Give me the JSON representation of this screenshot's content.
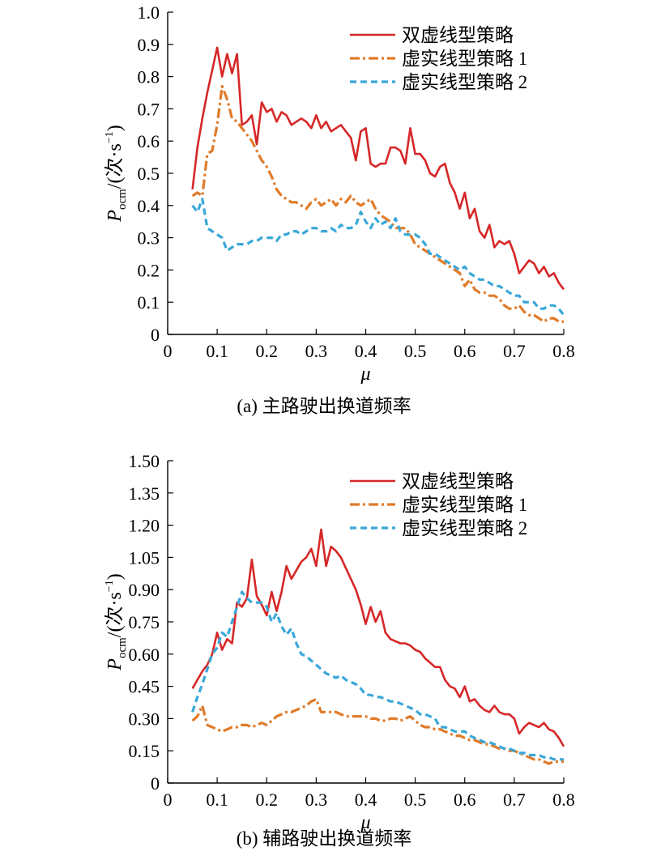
{
  "chart_data": [
    {
      "type": "line",
      "caption": "(a) 主路驶出换道频率",
      "xlabel": "μ",
      "ylabel": "P_ocm/(次·s⁻¹)",
      "ylabel_main": "P",
      "ylabel_sub": "ocm",
      "ylabel_unit": "/(次·s",
      "ylabel_sup": "−1",
      "ylabel_close": ")",
      "xlim": [
        0,
        0.8
      ],
      "ylim": [
        0,
        1.0
      ],
      "xticks": [
        "0",
        "0.1",
        "0.2",
        "0.3",
        "0.4",
        "0.5",
        "0.6",
        "0.7",
        "0.8"
      ],
      "yticks": [
        "0",
        "0.1",
        "0.2",
        "0.3",
        "0.4",
        "0.5",
        "0.6",
        "0.7",
        "0.8",
        "0.9",
        "1.0"
      ],
      "ytick_values": [
        0,
        0.1,
        0.2,
        0.3,
        0.4,
        0.5,
        0.6,
        0.7,
        0.8,
        0.9,
        1.0
      ],
      "legend_position": "top-right",
      "grid": false,
      "series": [
        {
          "name": "双虚线型策略",
          "color": "#d62728",
          "dash": "solid",
          "x": [
            0.05,
            0.06,
            0.07,
            0.08,
            0.09,
            0.1,
            0.11,
            0.12,
            0.13,
            0.14,
            0.15,
            0.16,
            0.17,
            0.18,
            0.19,
            0.2,
            0.21,
            0.22,
            0.23,
            0.24,
            0.25,
            0.26,
            0.27,
            0.28,
            0.29,
            0.3,
            0.31,
            0.32,
            0.33,
            0.34,
            0.35,
            0.36,
            0.37,
            0.38,
            0.39,
            0.4,
            0.41,
            0.42,
            0.43,
            0.44,
            0.45,
            0.46,
            0.47,
            0.48,
            0.49,
            0.5,
            0.51,
            0.52,
            0.53,
            0.54,
            0.55,
            0.56,
            0.57,
            0.58,
            0.59,
            0.6,
            0.61,
            0.62,
            0.63,
            0.64,
            0.65,
            0.66,
            0.67,
            0.68,
            0.69,
            0.7,
            0.71,
            0.72,
            0.73,
            0.74,
            0.75,
            0.76,
            0.77,
            0.78,
            0.79,
            0.8
          ],
          "y": [
            0.45,
            0.58,
            0.67,
            0.75,
            0.82,
            0.89,
            0.8,
            0.87,
            0.81,
            0.87,
            0.65,
            0.66,
            0.68,
            0.59,
            0.72,
            0.69,
            0.7,
            0.66,
            0.69,
            0.68,
            0.65,
            0.66,
            0.67,
            0.66,
            0.64,
            0.68,
            0.64,
            0.66,
            0.63,
            0.64,
            0.65,
            0.63,
            0.61,
            0.54,
            0.63,
            0.64,
            0.53,
            0.52,
            0.53,
            0.53,
            0.58,
            0.58,
            0.57,
            0.53,
            0.64,
            0.56,
            0.56,
            0.54,
            0.5,
            0.49,
            0.52,
            0.53,
            0.47,
            0.44,
            0.39,
            0.44,
            0.36,
            0.39,
            0.32,
            0.3,
            0.34,
            0.27,
            0.29,
            0.28,
            0.29,
            0.25,
            0.19,
            0.21,
            0.23,
            0.22,
            0.19,
            0.21,
            0.18,
            0.19,
            0.16,
            0.14
          ]
        },
        {
          "name": "虚实线型策略 1",
          "color": "#e07b2a",
          "dash": "12,4,3,4",
          "x": [
            0.05,
            0.06,
            0.07,
            0.08,
            0.09,
            0.1,
            0.11,
            0.12,
            0.13,
            0.14,
            0.15,
            0.16,
            0.17,
            0.18,
            0.19,
            0.2,
            0.21,
            0.22,
            0.23,
            0.24,
            0.25,
            0.26,
            0.27,
            0.28,
            0.29,
            0.3,
            0.31,
            0.32,
            0.33,
            0.34,
            0.35,
            0.36,
            0.37,
            0.38,
            0.39,
            0.4,
            0.41,
            0.42,
            0.43,
            0.44,
            0.45,
            0.46,
            0.47,
            0.48,
            0.49,
            0.5,
            0.51,
            0.52,
            0.53,
            0.54,
            0.55,
            0.56,
            0.57,
            0.58,
            0.59,
            0.6,
            0.61,
            0.62,
            0.63,
            0.64,
            0.65,
            0.66,
            0.67,
            0.68,
            0.69,
            0.7,
            0.71,
            0.72,
            0.73,
            0.74,
            0.75,
            0.76,
            0.77,
            0.78,
            0.79,
            0.8
          ],
          "y": [
            0.43,
            0.44,
            0.43,
            0.56,
            0.57,
            0.65,
            0.77,
            0.73,
            0.67,
            0.66,
            0.64,
            0.62,
            0.6,
            0.57,
            0.54,
            0.52,
            0.49,
            0.45,
            0.43,
            0.42,
            0.41,
            0.41,
            0.4,
            0.39,
            0.41,
            0.42,
            0.4,
            0.41,
            0.42,
            0.4,
            0.42,
            0.41,
            0.43,
            0.41,
            0.4,
            0.41,
            0.42,
            0.39,
            0.37,
            0.36,
            0.35,
            0.33,
            0.33,
            0.33,
            0.31,
            0.28,
            0.27,
            0.26,
            0.25,
            0.24,
            0.23,
            0.22,
            0.21,
            0.2,
            0.19,
            0.15,
            0.17,
            0.14,
            0.13,
            0.13,
            0.12,
            0.12,
            0.11,
            0.09,
            0.08,
            0.08,
            0.09,
            0.07,
            0.06,
            0.06,
            0.05,
            0.04,
            0.05,
            0.05,
            0.04,
            0.04
          ]
        },
        {
          "name": "虚实线型策略 2",
          "color": "#3aa7d8",
          "dash": "8,5",
          "x": [
            0.05,
            0.06,
            0.07,
            0.08,
            0.09,
            0.1,
            0.11,
            0.12,
            0.13,
            0.14,
            0.15,
            0.16,
            0.17,
            0.18,
            0.19,
            0.2,
            0.21,
            0.22,
            0.23,
            0.24,
            0.25,
            0.26,
            0.27,
            0.28,
            0.29,
            0.3,
            0.31,
            0.32,
            0.33,
            0.34,
            0.35,
            0.36,
            0.37,
            0.38,
            0.39,
            0.4,
            0.41,
            0.42,
            0.43,
            0.44,
            0.45,
            0.46,
            0.47,
            0.48,
            0.49,
            0.5,
            0.51,
            0.52,
            0.53,
            0.54,
            0.55,
            0.56,
            0.57,
            0.58,
            0.59,
            0.6,
            0.61,
            0.62,
            0.63,
            0.64,
            0.65,
            0.66,
            0.67,
            0.68,
            0.69,
            0.7,
            0.71,
            0.72,
            0.73,
            0.74,
            0.75,
            0.76,
            0.77,
            0.78,
            0.79,
            0.8
          ],
          "y": [
            0.4,
            0.38,
            0.42,
            0.33,
            0.32,
            0.31,
            0.3,
            0.26,
            0.27,
            0.28,
            0.28,
            0.28,
            0.29,
            0.29,
            0.3,
            0.3,
            0.3,
            0.29,
            0.31,
            0.31,
            0.32,
            0.32,
            0.31,
            0.32,
            0.33,
            0.33,
            0.32,
            0.32,
            0.33,
            0.32,
            0.34,
            0.33,
            0.33,
            0.34,
            0.38,
            0.35,
            0.33,
            0.36,
            0.34,
            0.35,
            0.33,
            0.36,
            0.32,
            0.31,
            0.31,
            0.31,
            0.3,
            0.28,
            0.25,
            0.25,
            0.24,
            0.23,
            0.22,
            0.21,
            0.2,
            0.21,
            0.19,
            0.18,
            0.17,
            0.17,
            0.16,
            0.15,
            0.15,
            0.14,
            0.13,
            0.12,
            0.12,
            0.1,
            0.1,
            0.1,
            0.08,
            0.08,
            0.09,
            0.09,
            0.08,
            0.06
          ]
        }
      ]
    },
    {
      "type": "line",
      "caption": "(b) 辅路驶出换道频率",
      "xlabel": "μ",
      "ylabel": "P_ocm/(次·s⁻¹)",
      "ylabel_main": "P",
      "ylabel_sub": "ocm",
      "ylabel_unit": "/(次·s",
      "ylabel_sup": "−1",
      "ylabel_close": ")",
      "xlim": [
        0,
        0.8
      ],
      "ylim": [
        0,
        1.5
      ],
      "xticks": [
        "0",
        "0.1",
        "0.2",
        "0.3",
        "0.4",
        "0.5",
        "0.6",
        "0.7",
        "0.8"
      ],
      "yticks": [
        "0",
        "0.15",
        "0.30",
        "0.45",
        "0.60",
        "0.75",
        "0.90",
        "1.05",
        "1.20",
        "1.35",
        "1.50"
      ],
      "ytick_values": [
        0,
        0.15,
        0.3,
        0.45,
        0.6,
        0.75,
        0.9,
        1.05,
        1.2,
        1.35,
        1.5
      ],
      "legend_position": "top-right",
      "grid": false,
      "series": [
        {
          "name": "双虚线型策略",
          "color": "#d62728",
          "dash": "solid",
          "x": [
            0.05,
            0.06,
            0.07,
            0.08,
            0.09,
            0.1,
            0.11,
            0.12,
            0.13,
            0.14,
            0.15,
            0.16,
            0.17,
            0.18,
            0.19,
            0.2,
            0.21,
            0.22,
            0.23,
            0.24,
            0.25,
            0.26,
            0.27,
            0.28,
            0.29,
            0.3,
            0.31,
            0.32,
            0.33,
            0.34,
            0.35,
            0.36,
            0.37,
            0.38,
            0.39,
            0.4,
            0.41,
            0.42,
            0.43,
            0.44,
            0.45,
            0.46,
            0.47,
            0.48,
            0.49,
            0.5,
            0.51,
            0.52,
            0.53,
            0.54,
            0.55,
            0.56,
            0.57,
            0.58,
            0.59,
            0.6,
            0.61,
            0.62,
            0.63,
            0.64,
            0.65,
            0.66,
            0.67,
            0.68,
            0.69,
            0.7,
            0.71,
            0.72,
            0.73,
            0.74,
            0.75,
            0.76,
            0.77,
            0.78,
            0.79,
            0.8
          ],
          "y": [
            0.44,
            0.48,
            0.52,
            0.55,
            0.6,
            0.7,
            0.62,
            0.67,
            0.65,
            0.84,
            0.82,
            0.86,
            1.04,
            0.87,
            0.83,
            0.78,
            0.89,
            0.8,
            0.89,
            1.01,
            0.95,
            0.99,
            1.03,
            1.05,
            1.09,
            1.01,
            1.18,
            1.01,
            1.1,
            1.08,
            1.05,
            1.0,
            0.95,
            0.9,
            0.83,
            0.74,
            0.82,
            0.75,
            0.8,
            0.7,
            0.67,
            0.66,
            0.65,
            0.65,
            0.64,
            0.62,
            0.61,
            0.58,
            0.56,
            0.54,
            0.54,
            0.48,
            0.45,
            0.44,
            0.4,
            0.45,
            0.38,
            0.39,
            0.36,
            0.34,
            0.33,
            0.36,
            0.33,
            0.32,
            0.32,
            0.3,
            0.23,
            0.26,
            0.28,
            0.27,
            0.26,
            0.28,
            0.25,
            0.24,
            0.21,
            0.17
          ]
        },
        {
          "name": "虚实线型策略 1",
          "color": "#e07b2a",
          "dash": "12,4,3,4",
          "x": [
            0.05,
            0.06,
            0.07,
            0.08,
            0.09,
            0.1,
            0.11,
            0.12,
            0.13,
            0.14,
            0.15,
            0.16,
            0.17,
            0.18,
            0.19,
            0.2,
            0.21,
            0.22,
            0.23,
            0.24,
            0.25,
            0.26,
            0.27,
            0.28,
            0.29,
            0.3,
            0.31,
            0.32,
            0.33,
            0.34,
            0.35,
            0.36,
            0.37,
            0.38,
            0.39,
            0.4,
            0.41,
            0.42,
            0.43,
            0.44,
            0.45,
            0.46,
            0.47,
            0.48,
            0.49,
            0.5,
            0.51,
            0.52,
            0.53,
            0.54,
            0.55,
            0.56,
            0.57,
            0.58,
            0.59,
            0.6,
            0.61,
            0.62,
            0.63,
            0.64,
            0.65,
            0.66,
            0.67,
            0.68,
            0.69,
            0.7,
            0.71,
            0.72,
            0.73,
            0.74,
            0.75,
            0.76,
            0.77,
            0.78,
            0.79,
            0.8
          ],
          "y": [
            0.29,
            0.31,
            0.36,
            0.27,
            0.26,
            0.25,
            0.24,
            0.25,
            0.26,
            0.26,
            0.27,
            0.27,
            0.26,
            0.27,
            0.28,
            0.27,
            0.29,
            0.31,
            0.32,
            0.33,
            0.33,
            0.34,
            0.35,
            0.36,
            0.38,
            0.39,
            0.33,
            0.33,
            0.33,
            0.33,
            0.32,
            0.31,
            0.31,
            0.31,
            0.31,
            0.31,
            0.3,
            0.3,
            0.29,
            0.29,
            0.3,
            0.3,
            0.29,
            0.3,
            0.31,
            0.29,
            0.27,
            0.26,
            0.26,
            0.25,
            0.25,
            0.24,
            0.23,
            0.22,
            0.22,
            0.21,
            0.2,
            0.2,
            0.19,
            0.18,
            0.18,
            0.17,
            0.16,
            0.16,
            0.15,
            0.15,
            0.14,
            0.13,
            0.12,
            0.11,
            0.11,
            0.1,
            0.09,
            0.1,
            0.1,
            0.1
          ]
        },
        {
          "name": "虚实线型策略 2",
          "color": "#3aa7d8",
          "dash": "8,5",
          "x": [
            0.05,
            0.06,
            0.07,
            0.08,
            0.09,
            0.1,
            0.11,
            0.12,
            0.13,
            0.14,
            0.15,
            0.16,
            0.17,
            0.18,
            0.19,
            0.2,
            0.21,
            0.22,
            0.23,
            0.24,
            0.25,
            0.26,
            0.27,
            0.28,
            0.29,
            0.3,
            0.31,
            0.32,
            0.33,
            0.34,
            0.35,
            0.36,
            0.37,
            0.38,
            0.39,
            0.4,
            0.41,
            0.42,
            0.43,
            0.44,
            0.45,
            0.46,
            0.47,
            0.48,
            0.49,
            0.5,
            0.51,
            0.52,
            0.53,
            0.54,
            0.55,
            0.56,
            0.57,
            0.58,
            0.59,
            0.6,
            0.61,
            0.62,
            0.63,
            0.64,
            0.65,
            0.66,
            0.67,
            0.68,
            0.69,
            0.7,
            0.71,
            0.72,
            0.73,
            0.74,
            0.75,
            0.76,
            0.77,
            0.78,
            0.79,
            0.8
          ],
          "y": [
            0.33,
            0.4,
            0.46,
            0.53,
            0.6,
            0.63,
            0.7,
            0.68,
            0.75,
            0.82,
            0.89,
            0.86,
            0.84,
            0.84,
            0.84,
            0.82,
            0.75,
            0.79,
            0.73,
            0.69,
            0.72,
            0.65,
            0.6,
            0.59,
            0.57,
            0.55,
            0.53,
            0.51,
            0.5,
            0.49,
            0.5,
            0.48,
            0.47,
            0.46,
            0.44,
            0.41,
            0.41,
            0.4,
            0.4,
            0.39,
            0.38,
            0.38,
            0.37,
            0.36,
            0.35,
            0.34,
            0.32,
            0.32,
            0.31,
            0.3,
            0.26,
            0.26,
            0.25,
            0.24,
            0.24,
            0.24,
            0.22,
            0.21,
            0.2,
            0.19,
            0.19,
            0.18,
            0.17,
            0.16,
            0.16,
            0.15,
            0.14,
            0.14,
            0.13,
            0.13,
            0.13,
            0.12,
            0.12,
            0.11,
            0.11,
            0.11
          ]
        }
      ]
    }
  ]
}
